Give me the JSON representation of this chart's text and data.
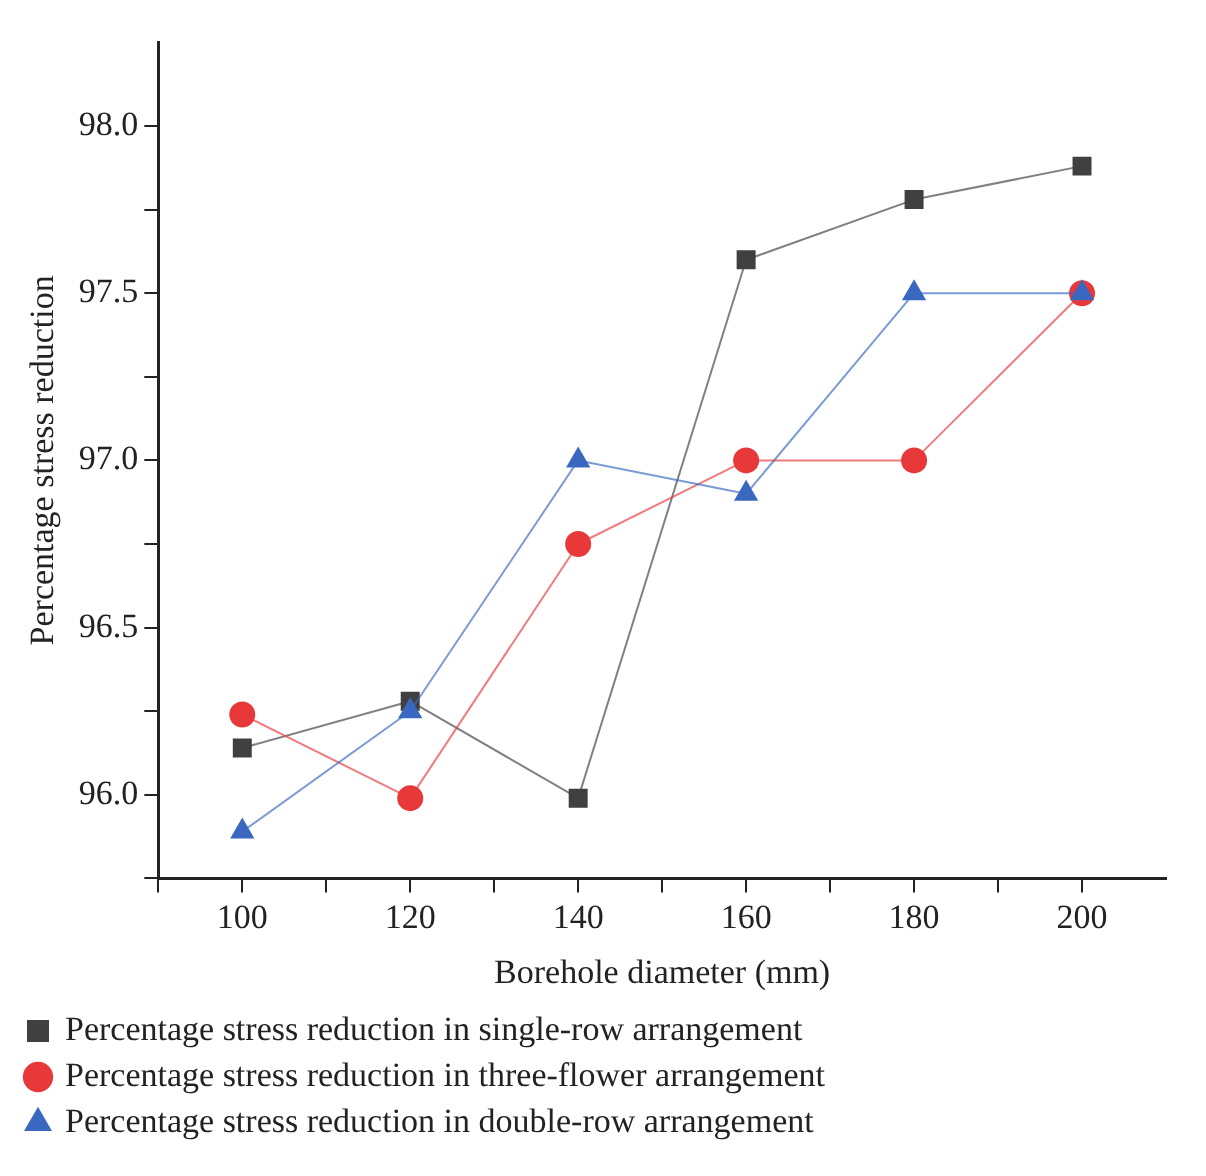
{
  "chart_data": {
    "type": "line",
    "xlabel": "Borehole diameter (mm)",
    "ylabel": "Percentage stress reduction",
    "x": [
      100,
      120,
      140,
      160,
      180,
      200
    ],
    "series": [
      {
        "name": "Percentage stress reduction in single-row arrangement",
        "color": "#404040",
        "marker": "square",
        "values": [
          96.14,
          96.28,
          95.99,
          97.6,
          97.78,
          97.88
        ]
      },
      {
        "name": "Percentage stress reduction in three-flower arrangement",
        "color": "#e8383a",
        "marker": "circle",
        "values": [
          96.24,
          95.99,
          96.75,
          97.0,
          97.0,
          97.5
        ]
      },
      {
        "name": "Percentage stress reduction in double-row arrangement",
        "color": "#3a68c0",
        "marker": "triangle",
        "values": [
          95.89,
          96.25,
          97.0,
          96.9,
          97.5,
          97.5
        ]
      }
    ],
    "xlim": [
      90,
      210
    ],
    "xticks": [
      {
        "value": 90,
        "label": null
      },
      100,
      {
        "value": 110,
        "label": null
      },
      120,
      {
        "value": 130,
        "label": null
      },
      140,
      {
        "value": 150,
        "label": null
      },
      160,
      {
        "value": 170,
        "label": null
      },
      180,
      {
        "value": 190,
        "label": null
      },
      200
    ],
    "ylim": [
      95.75,
      98.25
    ],
    "yticks": [
      {
        "value": 95.75,
        "label": null
      },
      {
        "value": 96,
        "label": "96.0"
      },
      {
        "value": 96.25,
        "label": null
      },
      {
        "value": 96.5,
        "label": "96.5"
      },
      {
        "value": 96.75,
        "label": null
      },
      {
        "value": 97,
        "label": "97.0"
      },
      {
        "value": 97.25,
        "label": null
      },
      {
        "value": 97.5,
        "label": "97.5"
      },
      {
        "value": 97.75,
        "label": null
      },
      {
        "value": 98,
        "label": "98.0"
      }
    ],
    "grid": false,
    "legend": "bottom",
    "line_style": "solid"
  }
}
